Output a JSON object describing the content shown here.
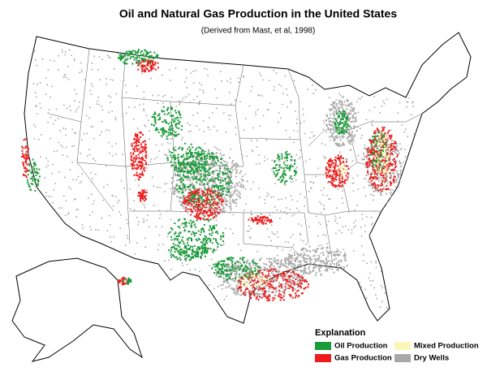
{
  "title": "Oil and Natural Gas Production in the United States",
  "subtitle": "(Derived from Mast, et al, 1998)",
  "legend": {
    "title": "Explanation",
    "items": [
      {
        "label": "Oil Production",
        "color": "#1a9a3a"
      },
      {
        "label": "Mixed Production",
        "color": "#fbf7b8"
      },
      {
        "label": "Gas Production",
        "color": "#ee1c1c"
      },
      {
        "label": "Dry Wells",
        "color": "#a8a8a8"
      }
    ]
  }
}
